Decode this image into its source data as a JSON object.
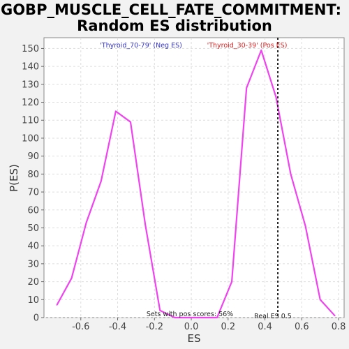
{
  "chart_data": {
    "type": "line",
    "title_line1": "GOBP_MUSCLE_CELL_FATE_COMMITMENT:",
    "title_line2": "Random ES distribution",
    "xlabel": "ES",
    "ylabel": "P(ES)",
    "xlim": [
      -0.8,
      0.83
    ],
    "ylim": [
      0,
      156
    ],
    "x_ticks": [
      -0.6,
      -0.4,
      -0.2,
      0.0,
      0.2,
      0.4,
      0.6,
      0.8
    ],
    "x_tick_labels": [
      "-0.6",
      "-0.4",
      "-0.2",
      "0.0",
      "0.2",
      "0.4",
      "0.6",
      "0.8"
    ],
    "y_ticks": [
      0,
      10,
      20,
      30,
      40,
      50,
      60,
      70,
      80,
      90,
      100,
      110,
      120,
      130,
      140,
      150
    ],
    "y_tick_labels": [
      "0",
      "10",
      "20",
      "30",
      "40",
      "50",
      "60",
      "70",
      "80",
      "90",
      "100",
      "110",
      "120",
      "130",
      "140",
      "150"
    ],
    "grid": true,
    "series": [
      {
        "color": "#ee44ee",
        "x": [
          -0.73,
          -0.65,
          -0.57,
          -0.49,
          -0.41,
          -0.33,
          -0.25,
          -0.17,
          -0.09,
          -0.01,
          0.07,
          0.14,
          0.22,
          0.3,
          0.38,
          0.46,
          0.54,
          0.62,
          0.7,
          0.78
        ],
        "y": [
          7,
          22,
          53,
          76,
          115,
          109,
          52,
          4,
          0,
          0,
          0,
          0,
          20,
          128,
          149,
          123,
          80,
          51,
          10,
          1
        ]
      }
    ],
    "real_es": 0.5,
    "real_es_x": 0.47,
    "real_es_label": "Real ES 0.5",
    "neg_label": "'Thyroid_70-79' (Neg ES)",
    "pos_label": "'Thyroid_30-39' (Pos ES)",
    "pos_scores_label": "Sets with pos scores: 56%",
    "colors": {
      "line": "#ee44ee",
      "neg": "#3333cc",
      "pos": "#dd2222",
      "grid": "#dddddd"
    }
  }
}
